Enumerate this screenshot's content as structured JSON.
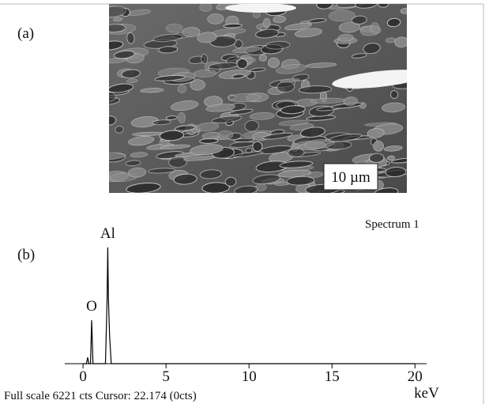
{
  "panel_a": {
    "label": "(a)",
    "scale_bar": "10 µm"
  },
  "panel_b": {
    "label": "(b)"
  },
  "chart_data": {
    "type": "line",
    "title": "Spectrum 1",
    "x_label": "keV",
    "footer": "Full scale 6221 cts Cursor: 22.174 (0cts)",
    "x": [
      0,
      0.2,
      0.28,
      0.35,
      0.45,
      0.52,
      0.6,
      1.35,
      1.45,
      1.49,
      1.53,
      1.6,
      1.7,
      20
    ],
    "series": [
      {
        "name": "Spectrum 1",
        "color": "#000000",
        "values": [
          0,
          0,
          290,
          0,
          0,
          2010,
          0,
          0,
          3000,
          5380,
          3000,
          1300,
          0,
          0
        ]
      }
    ],
    "annotations": [
      {
        "text": "O",
        "x": 0.52
      },
      {
        "text": "Al",
        "x": 1.49
      }
    ],
    "xlim": [
      -1.1,
      20.7
    ],
    "ylim": [
      0,
      6221
    ],
    "xticks": [
      0,
      5,
      10,
      15,
      20
    ]
  }
}
